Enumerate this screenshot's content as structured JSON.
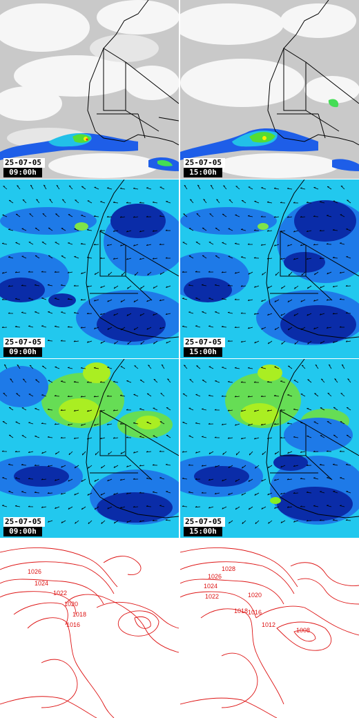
{
  "rows": [
    {
      "type": "satellite",
      "panels": [
        {
          "date": "25-07-05",
          "time": "09:00h"
        },
        {
          "date": "25-07-05",
          "time": "15:00h"
        }
      ]
    },
    {
      "type": "wind-low",
      "panels": [
        {
          "date": "25-07-05",
          "time": "09:00h"
        },
        {
          "date": "25-07-05",
          "time": "15:00h"
        }
      ]
    },
    {
      "type": "wind-high",
      "panels": [
        {
          "date": "25-07-05",
          "time": "09:00h"
        },
        {
          "date": "25-07-05",
          "time": "15:00h"
        }
      ]
    },
    {
      "type": "pressure",
      "isobars_left": [
        "1026",
        "1024",
        "1022",
        "1020",
        "1018",
        "1016"
      ],
      "isobars_right": [
        "1028",
        "1026",
        "1024",
        "1022",
        "1020",
        "1018",
        "1016",
        "1012",
        "1008"
      ]
    }
  ],
  "colors": {
    "satellite_bg": "#c8c8c8",
    "satellite_cloud": "#ffffff",
    "field_cyan": "#22ccee",
    "field_blue": "#1e74e8",
    "field_dark": "#0a2aa8",
    "field_green": "#88ee22",
    "isobar": "#dd1111",
    "border_line": "#000000"
  }
}
